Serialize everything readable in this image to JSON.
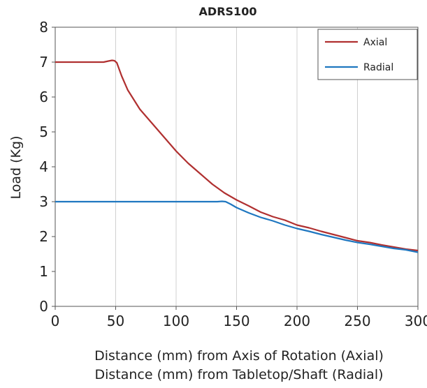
{
  "chart_data": {
    "type": "line",
    "title": "ADRS100",
    "ylabel": "Load (Kg)",
    "xlabel_lines": [
      "Distance (mm) from Axis of Rotation (Axial)",
      "Distance (mm) from Tabletop/Shaft (Radial)"
    ],
    "xlim": [
      0,
      300
    ],
    "ylim": [
      0,
      8
    ],
    "x_ticks": [
      0,
      50,
      100,
      150,
      200,
      250,
      300
    ],
    "y_ticks": [
      0,
      1,
      2,
      3,
      4,
      5,
      6,
      7,
      8
    ],
    "grid": "vertical",
    "legend_position": "top-right",
    "series": [
      {
        "name": "Axial",
        "color": "#b03030",
        "points": [
          [
            0,
            7
          ],
          [
            40,
            7
          ],
          [
            44,
            7.03
          ],
          [
            47,
            7.05
          ],
          [
            49,
            7.04
          ],
          [
            51,
            6.98
          ],
          [
            55,
            6.6
          ],
          [
            60,
            6.2
          ],
          [
            70,
            5.65
          ],
          [
            80,
            5.25
          ],
          [
            90,
            4.85
          ],
          [
            100,
            4.45
          ],
          [
            110,
            4.1
          ],
          [
            120,
            3.8
          ],
          [
            130,
            3.5
          ],
          [
            140,
            3.25
          ],
          [
            150,
            3.05
          ],
          [
            160,
            2.88
          ],
          [
            170,
            2.7
          ],
          [
            180,
            2.57
          ],
          [
            190,
            2.47
          ],
          [
            200,
            2.33
          ],
          [
            210,
            2.25
          ],
          [
            220,
            2.15
          ],
          [
            230,
            2.06
          ],
          [
            240,
            1.97
          ],
          [
            250,
            1.88
          ],
          [
            260,
            1.83
          ],
          [
            270,
            1.76
          ],
          [
            280,
            1.7
          ],
          [
            290,
            1.64
          ],
          [
            300,
            1.6
          ]
        ]
      },
      {
        "name": "Radial",
        "color": "#1f77c0",
        "points": [
          [
            0,
            3
          ],
          [
            134,
            3
          ],
          [
            138,
            3.01
          ],
          [
            141,
            3
          ],
          [
            145,
            2.93
          ],
          [
            150,
            2.83
          ],
          [
            160,
            2.68
          ],
          [
            170,
            2.55
          ],
          [
            180,
            2.45
          ],
          [
            190,
            2.33
          ],
          [
            200,
            2.23
          ],
          [
            210,
            2.15
          ],
          [
            220,
            2.06
          ],
          [
            230,
            1.98
          ],
          [
            240,
            1.9
          ],
          [
            250,
            1.83
          ],
          [
            260,
            1.78
          ],
          [
            270,
            1.72
          ],
          [
            280,
            1.66
          ],
          [
            290,
            1.62
          ],
          [
            300,
            1.55
          ]
        ]
      }
    ]
  }
}
